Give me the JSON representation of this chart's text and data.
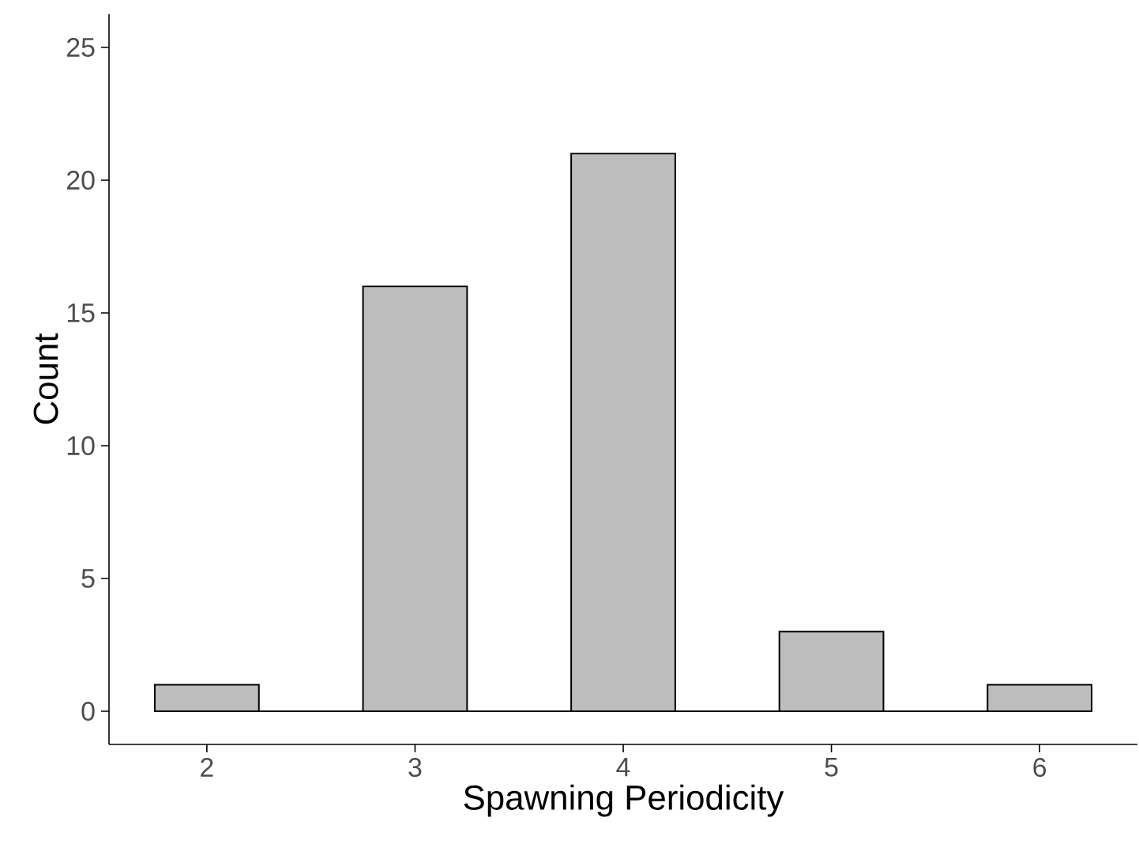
{
  "chart_data": {
    "type": "bar",
    "xlabel": "Spawning Periodicity",
    "ylabel": "Count",
    "series": [
      {
        "x": [
          2,
          3,
          4,
          5,
          6
        ],
        "values": [
          1,
          16,
          21,
          3,
          1
        ],
        "color": "#bdbdbd"
      },
      {
        "type": "line",
        "x": [
          1.75,
          6.25
        ],
        "values": [
          0,
          0
        ],
        "color": "#000000"
      }
    ],
    "xlim": [
      1.53,
      6.47
    ],
    "ylim": [
      -1.25,
      26.25
    ],
    "xticks": [
      2,
      3,
      4,
      5,
      6
    ],
    "yticks": [
      0,
      5,
      10,
      15,
      20,
      25
    ]
  }
}
